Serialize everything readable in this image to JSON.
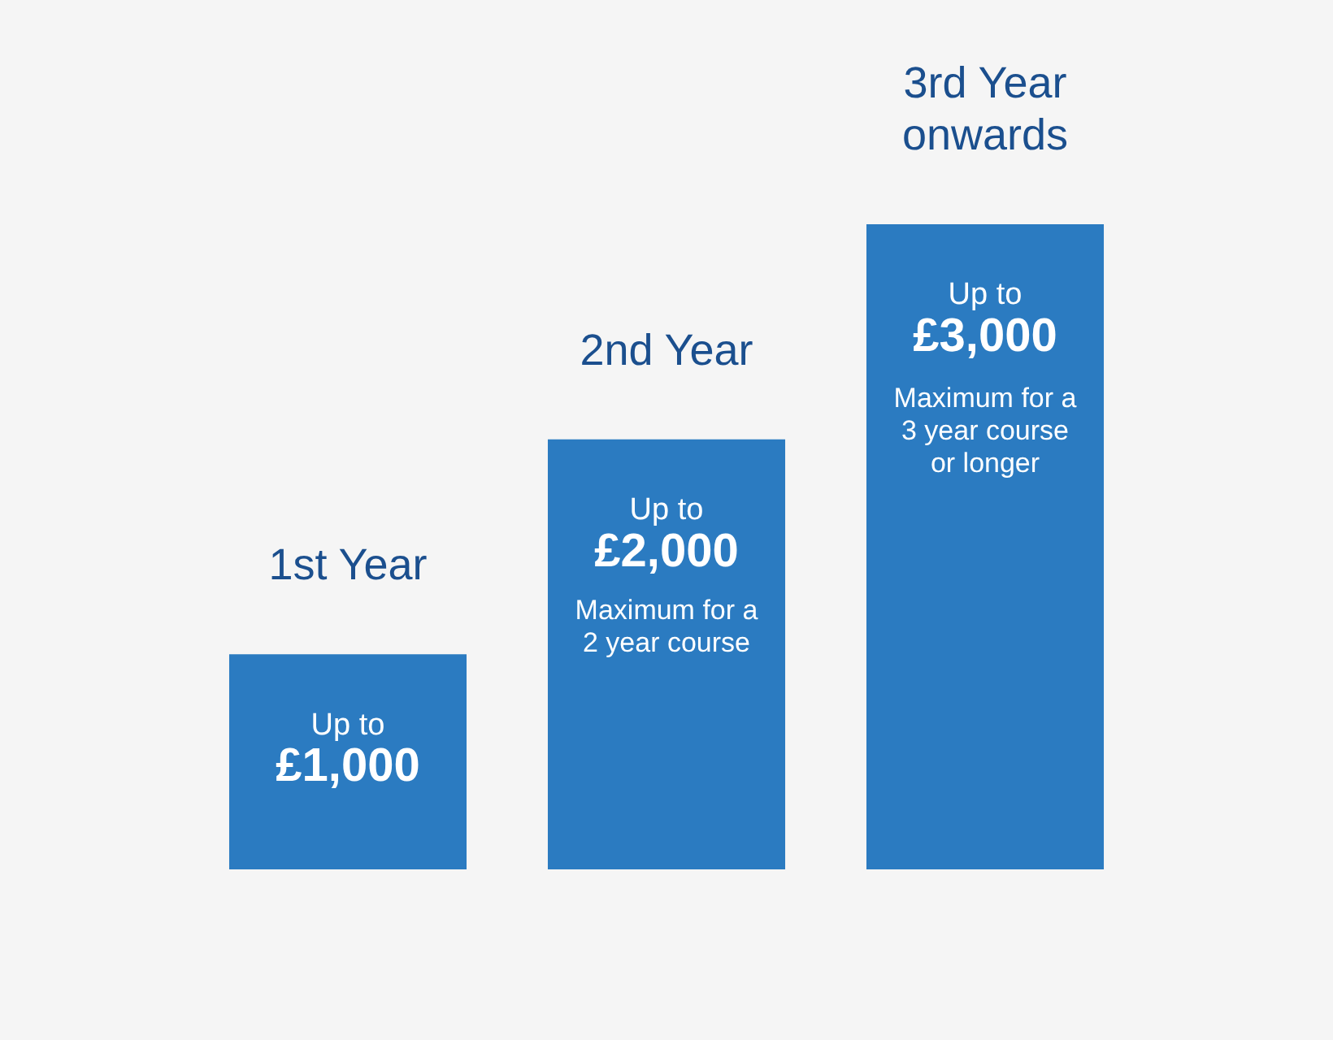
{
  "chart_data": {
    "type": "bar",
    "categories": [
      "1st Year",
      "2nd Year",
      "3rd Year onwards"
    ],
    "values": [
      1000,
      2000,
      3000
    ],
    "color": "#2b7bc1",
    "value_labels": [
      "£1,000",
      "£2,000",
      "£3,000"
    ],
    "annotations": [
      "Up to",
      "Up to",
      "Maximum for a 2 year course",
      "Up to",
      "Maximum for a 3 year course or longer"
    ]
  }
}
